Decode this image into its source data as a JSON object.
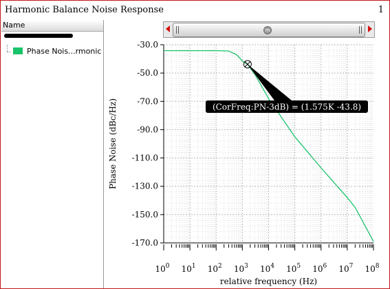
{
  "window": {
    "title": "Harmonic Balance Noise Response",
    "page_number": "1"
  },
  "left_panel": {
    "column_header": "Name",
    "legend_items": [
      {
        "label": "Phase Nois...rmonic",
        "color": "#19c36a"
      }
    ]
  },
  "scrollbar": {
    "thumb_icon": "center-grip-icon",
    "arrow_color": "#d41010"
  },
  "chart_data": {
    "type": "line",
    "xlabel": "relative frequency (Hz)",
    "ylabel": "Phase Noise (dBc/Hz)",
    "x_scale": "log",
    "xlim": [
      1,
      100000000
    ],
    "ylim": [
      -170,
      -30
    ],
    "y_ticks": [
      "-30.0",
      "-50.0",
      "-70.0",
      "-90.0",
      "-110.0",
      "-130.0",
      "-150.0",
      "-170.0"
    ],
    "x_tick_exponents": [
      "0",
      "1",
      "2",
      "3",
      "4",
      "5",
      "6",
      "7",
      "8"
    ],
    "x_tick_base": "10",
    "grid": true,
    "series": [
      {
        "color": "#19c36a",
        "x": [
          1,
          10,
          100,
          300,
          600,
          1000,
          1575,
          3000,
          10000,
          100000,
          1000000,
          10000000,
          20000000,
          100000000
        ],
        "y": [
          -34.2,
          -34.2,
          -34.2,
          -34.4,
          -37.0,
          -41.5,
          -43.8,
          -51.0,
          -68.0,
          -95.0,
          -117.0,
          -138.0,
          -145.0,
          -169.0
        ]
      }
    ],
    "marker": {
      "x": 1575,
      "y": -43.8,
      "label": "(CorFreq:PN-3dB) = (1.575K -43.8)"
    }
  }
}
